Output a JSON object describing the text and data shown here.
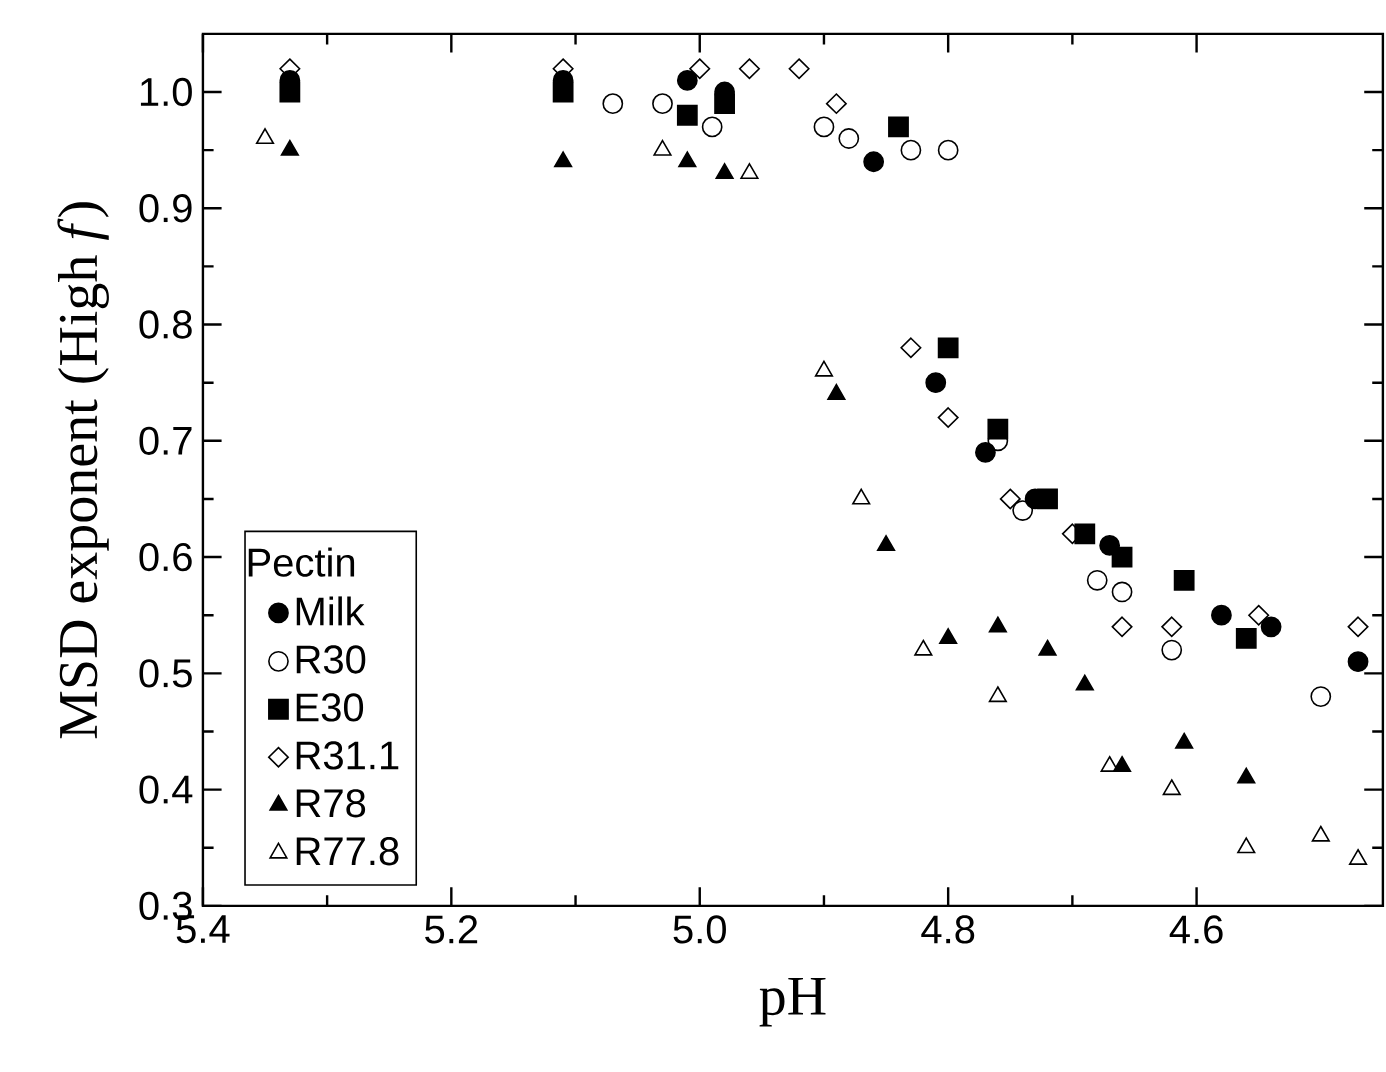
{
  "chart_data": {
    "type": "scatter",
    "xlabel": "pH",
    "ylabel": "MSD exponent (High *f*)",
    "legend_title": "Pectin",
    "legend": "bottom left",
    "xlim": [
      5.4,
      4.45
    ],
    "ylim": [
      0.3,
      1.05
    ],
    "xticks": [
      {
        "value": 5.4,
        "label": "5.4"
      },
      {
        "value": 5.2,
        "label": "5.2"
      },
      {
        "value": 5.0,
        "label": "5.0"
      },
      {
        "value": 4.8,
        "label": "4.8"
      },
      {
        "value": 4.6,
        "label": "4.6"
      }
    ],
    "yticks": [
      {
        "value": 0.3,
        "label": "0.3"
      },
      {
        "value": 0.4,
        "label": "0.4"
      },
      {
        "value": 0.5,
        "label": "0.5"
      },
      {
        "value": 0.6,
        "label": "0.6"
      },
      {
        "value": 0.7,
        "label": "0.7"
      },
      {
        "value": 0.8,
        "label": "0.8"
      },
      {
        "value": 0.9,
        "label": "0.9"
      },
      {
        "value": 1.0,
        "label": "1.0"
      }
    ],
    "series": [
      {
        "name": "Milk",
        "color": "#000000",
        "marker": "circle",
        "x": [
          5.33,
          5.11,
          5.01,
          4.98,
          4.86,
          4.81,
          4.77,
          4.73,
          4.67,
          4.58,
          4.54,
          4.47
        ],
        "values": [
          1.01,
          1.01,
          1.01,
          1.0,
          0.94,
          0.75,
          0.69,
          0.65,
          0.61,
          0.55,
          0.54,
          0.51
        ]
      },
      {
        "name": "R30",
        "color": "#000000",
        "marker": "circle_open",
        "x": [
          5.07,
          5.03,
          4.99,
          4.9,
          4.88,
          4.83,
          4.8,
          4.76,
          4.74,
          4.68,
          4.66,
          4.62,
          4.5
        ],
        "values": [
          0.99,
          0.99,
          0.97,
          0.97,
          0.96,
          0.95,
          0.95,
          0.7,
          0.64,
          0.58,
          0.57,
          0.52,
          0.48
        ]
      },
      {
        "name": "E30",
        "color": "#000000",
        "marker": "square",
        "x": [
          5.33,
          5.11,
          5.01,
          4.98,
          4.84,
          4.8,
          4.76,
          4.72,
          4.69,
          4.66,
          4.61,
          4.56
        ],
        "values": [
          1.0,
          1.0,
          0.98,
          0.99,
          0.97,
          0.78,
          0.71,
          0.65,
          0.62,
          0.6,
          0.58,
          0.53
        ]
      },
      {
        "name": "R31.1",
        "color": "#000000",
        "marker": "diamond_open",
        "x": [
          5.33,
          5.11,
          5.0,
          4.96,
          4.92,
          4.89,
          4.83,
          4.8,
          4.75,
          4.7,
          4.66,
          4.62,
          4.55,
          4.47
        ],
        "values": [
          1.02,
          1.02,
          1.02,
          1.02,
          1.02,
          0.99,
          0.78,
          0.72,
          0.65,
          0.62,
          0.54,
          0.54,
          0.55,
          0.54
        ]
      },
      {
        "name": "R78",
        "color": "#000000",
        "marker": "triangle",
        "x": [
          5.33,
          5.11,
          5.01,
          4.98,
          4.89,
          4.85,
          4.8,
          4.76,
          4.72,
          4.69,
          4.66,
          4.61,
          4.56
        ],
        "values": [
          0.95,
          0.94,
          0.94,
          0.93,
          0.74,
          0.61,
          0.53,
          0.54,
          0.52,
          0.49,
          0.42,
          0.44,
          0.41
        ]
      },
      {
        "name": "R77.8",
        "color": "#000000",
        "marker": "triangle_open",
        "x": [
          5.35,
          5.03,
          4.96,
          4.9,
          4.87,
          4.82,
          4.76,
          4.67,
          4.62,
          4.56,
          4.5,
          4.47
        ],
        "values": [
          0.96,
          0.95,
          0.93,
          0.76,
          0.65,
          0.52,
          0.48,
          0.42,
          0.4,
          0.35,
          0.36,
          0.34
        ]
      }
    ]
  }
}
